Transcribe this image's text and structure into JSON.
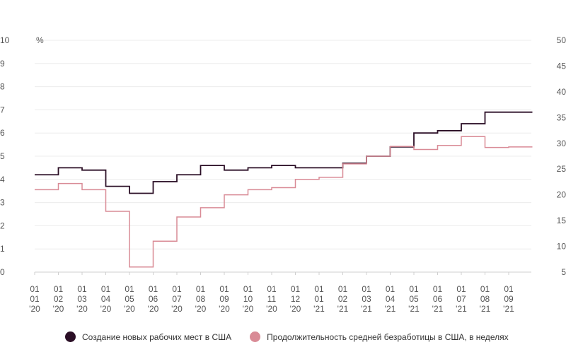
{
  "chart_data": {
    "type": "line",
    "title": "",
    "y_left_unit": "%",
    "y_left_ticks": [
      "0",
      "1",
      "2",
      "3",
      "4",
      "5",
      "6",
      "7",
      "8",
      "9",
      "10"
    ],
    "y_left_lim": [
      0,
      10
    ],
    "y_right_ticks": [
      "5",
      "10",
      "15",
      "20",
      "25",
      "30",
      "35",
      "40",
      "45",
      "50"
    ],
    "y_right_lim": [
      5,
      50
    ],
    "x_ticks": [
      [
        "01",
        "01",
        "'20"
      ],
      [
        "01",
        "02",
        "'20"
      ],
      [
        "01",
        "03",
        "'20"
      ],
      [
        "01",
        "04",
        "'20"
      ],
      [
        "01",
        "05",
        "'20"
      ],
      [
        "01",
        "06",
        "'20"
      ],
      [
        "01",
        "07",
        "'20"
      ],
      [
        "01",
        "08",
        "'20"
      ],
      [
        "01",
        "09",
        "'20"
      ],
      [
        "01",
        "10",
        "'20"
      ],
      [
        "01",
        "11",
        "'20"
      ],
      [
        "01",
        "12",
        "'20"
      ],
      [
        "01",
        "01",
        "'21"
      ],
      [
        "01",
        "02",
        "'21"
      ],
      [
        "01",
        "03",
        "'21"
      ],
      [
        "01",
        "04",
        "'21"
      ],
      [
        "01",
        "05",
        "'21"
      ],
      [
        "01",
        "06",
        "'21"
      ],
      [
        "01",
        "07",
        "'21"
      ],
      [
        "01",
        "08",
        "'21"
      ],
      [
        "01",
        "09",
        "'21"
      ]
    ],
    "grid": "horizontal",
    "legend_position": "bottom-left",
    "step": true,
    "series": [
      {
        "name": "Создание новых рабочих мест в США",
        "axis": "left",
        "color": "#2b0f26",
        "values": [
          4.2,
          4.5,
          4.4,
          3.7,
          3.4,
          3.9,
          4.2,
          4.6,
          4.4,
          4.5,
          4.6,
          4.5,
          4.5,
          4.7,
          5.0,
          5.4,
          6.0,
          6.1,
          6.4,
          6.9,
          6.9,
          6.9
        ]
      },
      {
        "name": "Продолжительность средней безработицы в США, в неделях",
        "axis": "right",
        "color": "#d98b96",
        "values": [
          21.0,
          22.2,
          21.0,
          16.8,
          6.0,
          11.0,
          15.7,
          17.5,
          20.0,
          21.0,
          21.4,
          23.0,
          23.4,
          26.0,
          27.5,
          29.4,
          28.8,
          29.6,
          31.3,
          29.2,
          29.3,
          29.3
        ]
      }
    ]
  }
}
